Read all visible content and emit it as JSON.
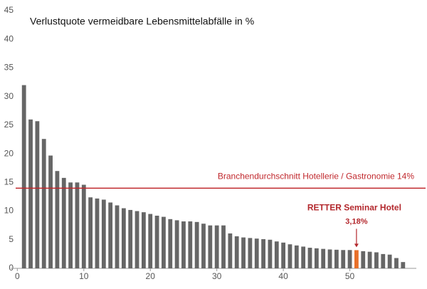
{
  "chart_data": {
    "type": "bar",
    "title": "Verlustquote vermeidbare Lebensmittelabfälle in %",
    "x": [
      1,
      2,
      3,
      4,
      5,
      6,
      7,
      8,
      9,
      10,
      11,
      12,
      13,
      14,
      15,
      16,
      17,
      18,
      19,
      20,
      21,
      22,
      23,
      24,
      25,
      26,
      27,
      28,
      29,
      30,
      31,
      32,
      33,
      34,
      35,
      36,
      37,
      38,
      39,
      40,
      41,
      42,
      43,
      44,
      45,
      46,
      47,
      48,
      49,
      50,
      51,
      52,
      53,
      54,
      55,
      56,
      57,
      58
    ],
    "values": [
      32,
      26,
      25.7,
      22.6,
      19.7,
      17,
      15.8,
      15,
      15,
      14.6,
      12.4,
      12.2,
      12,
      11.5,
      11,
      10.5,
      10.2,
      10,
      9.8,
      9.5,
      9.2,
      9,
      8.6,
      8.4,
      8.2,
      8.2,
      8.1,
      7.8,
      7.5,
      7.5,
      7.5,
      6.1,
      5.6,
      5.4,
      5.3,
      5.2,
      5.1,
      5,
      4.7,
      4.5,
      4.2,
      4,
      3.8,
      3.6,
      3.5,
      3.4,
      3.3,
      3.25,
      3.2,
      3.2,
      3.18,
      3,
      2.9,
      2.8,
      2.5,
      2.4,
      1.8,
      1.1
    ],
    "value_labels": [
      null,
      null,
      null,
      null,
      null,
      null,
      null,
      null,
      null,
      null,
      null,
      null,
      null,
      null,
      null,
      null,
      null,
      null,
      null,
      null,
      null,
      null,
      null,
      null,
      null,
      null,
      null,
      null,
      null,
      null,
      null,
      null,
      null,
      null,
      null,
      null,
      null,
      null,
      null,
      null,
      null,
      null,
      null,
      null,
      null,
      null,
      null,
      null,
      null,
      null,
      "3,18%",
      null,
      null,
      null,
      null,
      null,
      null,
      null
    ],
    "colors": [
      "#666666",
      "#666666",
      "#666666",
      "#666666",
      "#666666",
      "#666666",
      "#666666",
      "#666666",
      "#666666",
      "#666666",
      "#666666",
      "#666666",
      "#666666",
      "#666666",
      "#666666",
      "#666666",
      "#666666",
      "#666666",
      "#666666",
      "#666666",
      "#666666",
      "#666666",
      "#666666",
      "#666666",
      "#666666",
      "#666666",
      "#666666",
      "#666666",
      "#666666",
      "#666666",
      "#666666",
      "#666666",
      "#666666",
      "#666666",
      "#666666",
      "#666666",
      "#666666",
      "#666666",
      "#666666",
      "#666666",
      "#666666",
      "#666666",
      "#666666",
      "#666666",
      "#666666",
      "#666666",
      "#666666",
      "#666666",
      "#666666",
      "#666666",
      "#e8702a",
      "#666666",
      "#666666",
      "#666666",
      "#666666",
      "#666666",
      "#666666",
      "#666666"
    ],
    "annotation": "RETTER Seminar Hotel",
    "reference_line": {
      "value": 14,
      "label": "Branchendurchschnitt Hotellerie / Gastronomie 14%",
      "color": "#c0282d"
    },
    "xlim": [
      -1,
      60
    ],
    "xticks": [
      0,
      10,
      20,
      30,
      40,
      50
    ],
    "ylim": [
      0,
      45
    ],
    "yticks": [
      0,
      5,
      10,
      15,
      20,
      25,
      30,
      35,
      40,
      45
    ],
    "grid": false
  }
}
